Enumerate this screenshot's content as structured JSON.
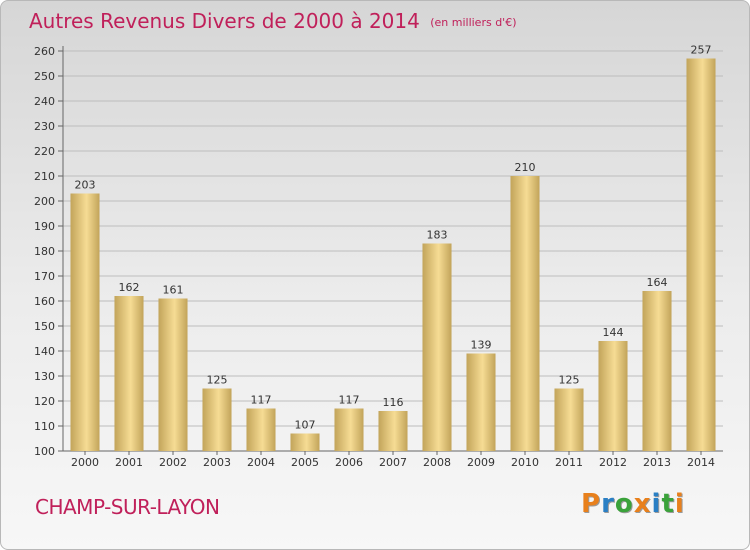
{
  "header": {
    "title": "Autres Revenus Divers de 2000 à 2014",
    "unit": "(en milliers d'€)"
  },
  "footer": {
    "commune": "CHAMP-SUR-LAYON",
    "logo_text": "Proxiti",
    "logo_letters": [
      {
        "ch": "P",
        "color": "#e8801c"
      },
      {
        "ch": "r",
        "color": "#2a7fc4"
      },
      {
        "ch": "o",
        "color": "#3aa23a"
      },
      {
        "ch": "x",
        "color": "#e8801c"
      },
      {
        "ch": "i",
        "color": "#2a7fc4"
      },
      {
        "ch": "t",
        "color": "#3aa23a"
      },
      {
        "ch": "i",
        "color": "#e8801c"
      }
    ]
  },
  "colors": {
    "title": "#c0205a",
    "bar_light": "#f6dc94",
    "bar_dark": "#c2a45a",
    "grid": "#bdbdbd"
  },
  "chart_data": {
    "type": "bar",
    "categories": [
      "2000",
      "2001",
      "2002",
      "2003",
      "2004",
      "2005",
      "2006",
      "2007",
      "2008",
      "2009",
      "2010",
      "2011",
      "2012",
      "2013",
      "2014"
    ],
    "values": [
      203,
      162,
      161,
      125,
      117,
      107,
      117,
      116,
      183,
      139,
      210,
      125,
      144,
      164,
      257
    ],
    "ylim": [
      100,
      260
    ],
    "yticks": [
      100,
      110,
      120,
      130,
      140,
      150,
      160,
      170,
      180,
      190,
      200,
      210,
      220,
      230,
      240,
      250,
      260
    ],
    "grid": true
  }
}
